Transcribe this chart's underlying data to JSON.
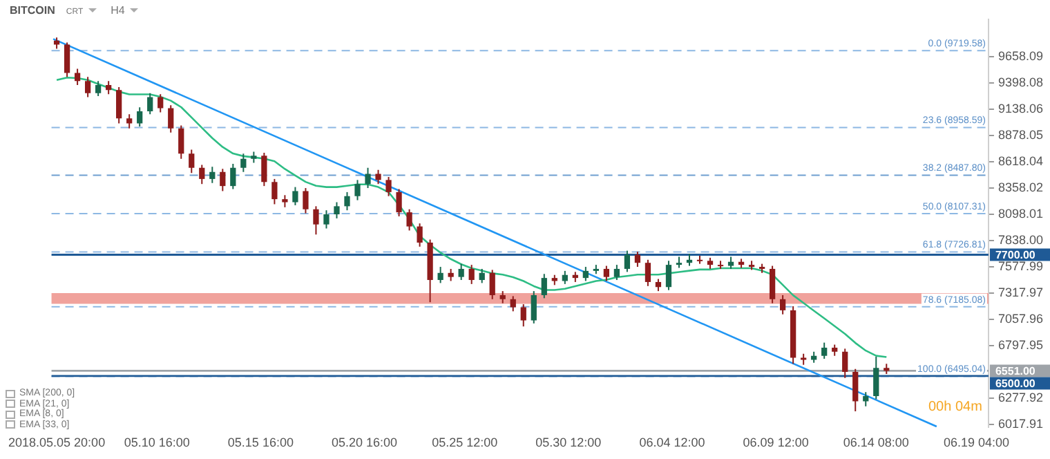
{
  "chart_data": {
    "type": "candlestick",
    "title": "BITCOIN",
    "annotations": [
      "CRT",
      "H4",
      "SMA [200, 0]",
      "EMA [21, 0]",
      "EMA [8, 0]",
      "EMA [33, 0]",
      "00h 04m"
    ],
    "x": [
      "2018-05-05T20:00",
      "2018-05-06T08:00",
      "2018-05-06T20:00",
      "2018-05-07T08:00",
      "2018-05-07T20:00",
      "2018-05-08T08:00",
      "2018-05-08T20:00",
      "2018-05-09T08:00",
      "2018-05-09T20:00",
      "2018-05-10T08:00",
      "2018-05-10T20:00",
      "2018-05-11T08:00",
      "2018-05-11T20:00",
      "2018-05-12T08:00",
      "2018-05-12T20:00",
      "2018-05-13T08:00",
      "2018-05-13T20:00",
      "2018-05-14T08:00",
      "2018-05-14T20:00",
      "2018-05-15T08:00",
      "2018-05-15T20:00",
      "2018-05-16T08:00",
      "2018-05-16T20:00",
      "2018-05-17T08:00",
      "2018-05-17T20:00",
      "2018-05-18T08:00",
      "2018-05-18T20:00",
      "2018-05-19T08:00",
      "2018-05-19T20:00",
      "2018-05-20T08:00",
      "2018-05-20T20:00",
      "2018-05-21T08:00",
      "2018-05-21T20:00",
      "2018-05-22T08:00",
      "2018-05-22T20:00",
      "2018-05-23T08:00",
      "2018-05-23T20:00",
      "2018-05-24T08:00",
      "2018-05-24T20:00",
      "2018-05-25T08:00",
      "2018-05-25T20:00",
      "2018-05-26T08:00",
      "2018-05-26T20:00",
      "2018-05-27T08:00",
      "2018-05-27T20:00",
      "2018-05-28T08:00",
      "2018-05-28T20:00",
      "2018-05-29T08:00",
      "2018-05-29T20:00",
      "2018-05-30T08:00",
      "2018-05-30T20:00",
      "2018-05-31T08:00",
      "2018-05-31T20:00",
      "2018-06-01T08:00",
      "2018-06-01T20:00",
      "2018-06-02T08:00",
      "2018-06-02T20:00",
      "2018-06-03T08:00",
      "2018-06-03T20:00",
      "2018-06-04T08:00",
      "2018-06-04T20:00",
      "2018-06-05T08:00",
      "2018-06-05T20:00",
      "2018-06-06T08:00",
      "2018-06-06T20:00",
      "2018-06-07T08:00",
      "2018-06-07T20:00",
      "2018-06-08T08:00",
      "2018-06-08T20:00",
      "2018-06-09T08:00",
      "2018-06-09T20:00",
      "2018-06-10T08:00",
      "2018-06-10T20:00",
      "2018-06-11T08:00",
      "2018-06-11T20:00",
      "2018-06-12T08:00",
      "2018-06-12T20:00",
      "2018-06-13T08:00",
      "2018-06-13T20:00",
      "2018-06-14T08:00",
      "2018-06-14T20:00"
    ],
    "ohlc": [
      [
        9820,
        9850,
        9740,
        9780
      ],
      [
        9780,
        9800,
        9460,
        9500
      ],
      [
        9500,
        9540,
        9380,
        9420
      ],
      [
        9420,
        9460,
        9260,
        9300
      ],
      [
        9300,
        9420,
        9270,
        9380
      ],
      [
        9380,
        9420,
        9290,
        9330
      ],
      [
        9330,
        9360,
        9000,
        9050
      ],
      [
        9050,
        9090,
        8950,
        9000
      ],
      [
        9000,
        9160,
        8970,
        9120
      ],
      [
        9120,
        9300,
        9090,
        9260
      ],
      [
        9260,
        9290,
        9110,
        9150
      ],
      [
        9150,
        9180,
        8910,
        8950
      ],
      [
        8950,
        8980,
        8650,
        8700
      ],
      [
        8700,
        8740,
        8510,
        8560
      ],
      [
        8560,
        8590,
        8400,
        8450
      ],
      [
        8450,
        8570,
        8410,
        8520
      ],
      [
        8520,
        8550,
        8330,
        8380
      ],
      [
        8380,
        8600,
        8350,
        8560
      ],
      [
        8560,
        8700,
        8520,
        8650
      ],
      [
        8650,
        8720,
        8610,
        8680
      ],
      [
        8680,
        8710,
        8380,
        8420
      ],
      [
        8420,
        8450,
        8200,
        8250
      ],
      [
        8250,
        8290,
        8170,
        8220
      ],
      [
        8220,
        8370,
        8190,
        8330
      ],
      [
        8330,
        8360,
        8110,
        8150
      ],
      [
        8150,
        8180,
        7900,
        8000
      ],
      [
        8000,
        8140,
        7960,
        8100
      ],
      [
        8100,
        8220,
        8060,
        8180
      ],
      [
        8180,
        8320,
        8140,
        8280
      ],
      [
        8280,
        8440,
        8240,
        8400
      ],
      [
        8400,
        8560,
        8360,
        8500
      ],
      [
        8500,
        8540,
        8400,
        8440
      ],
      [
        8440,
        8470,
        8280,
        8320
      ],
      [
        8320,
        8350,
        8080,
        8120
      ],
      [
        8120,
        8150,
        7940,
        7980
      ],
      [
        7980,
        8010,
        7780,
        7820
      ],
      [
        7820,
        7850,
        7230,
        7450
      ],
      [
        7450,
        7580,
        7420,
        7520
      ],
      [
        7520,
        7560,
        7440,
        7480
      ],
      [
        7480,
        7610,
        7450,
        7560
      ],
      [
        7560,
        7600,
        7410,
        7450
      ],
      [
        7450,
        7560,
        7420,
        7520
      ],
      [
        7520,
        7550,
        7260,
        7300
      ],
      [
        7300,
        7340,
        7220,
        7260
      ],
      [
        7260,
        7290,
        7140,
        7180
      ],
      [
        7180,
        7210,
        6990,
        7050
      ],
      [
        7050,
        7340,
        7020,
        7300
      ],
      [
        7300,
        7510,
        7270,
        7470
      ],
      [
        7470,
        7500,
        7400,
        7440
      ],
      [
        7440,
        7540,
        7410,
        7500
      ],
      [
        7500,
        7530,
        7430,
        7470
      ],
      [
        7470,
        7580,
        7440,
        7540
      ],
      [
        7540,
        7600,
        7510,
        7560
      ],
      [
        7560,
        7590,
        7440,
        7480
      ],
      [
        7480,
        7600,
        7450,
        7560
      ],
      [
        7560,
        7740,
        7530,
        7700
      ],
      [
        7700,
        7730,
        7580,
        7620
      ],
      [
        7620,
        7650,
        7390,
        7430
      ],
      [
        7430,
        7460,
        7340,
        7380
      ],
      [
        7380,
        7640,
        7350,
        7600
      ],
      [
        7600,
        7680,
        7570,
        7620
      ],
      [
        7620,
        7710,
        7590,
        7650
      ],
      [
        7650,
        7690,
        7610,
        7640
      ],
      [
        7640,
        7670,
        7560,
        7600
      ],
      [
        7600,
        7640,
        7560,
        7590
      ],
      [
        7590,
        7680,
        7560,
        7630
      ],
      [
        7630,
        7660,
        7570,
        7600
      ],
      [
        7600,
        7640,
        7550,
        7580
      ],
      [
        7580,
        7610,
        7520,
        7560
      ],
      [
        7560,
        7590,
        7220,
        7260
      ],
      [
        7260,
        7300,
        7110,
        7150
      ],
      [
        7150,
        7190,
        6620,
        6680
      ],
      [
        6680,
        6720,
        6610,
        6660
      ],
      [
        6660,
        6740,
        6630,
        6700
      ],
      [
        6700,
        6830,
        6670,
        6780
      ],
      [
        6780,
        6810,
        6700,
        6740
      ],
      [
        6740,
        6770,
        6480,
        6540
      ],
      [
        6540,
        6570,
        6150,
        6250
      ],
      [
        6250,
        6340,
        6200,
        6300
      ],
      [
        6300,
        6690,
        6270,
        6580
      ],
      [
        6580,
        6620,
        6520,
        6551
      ]
    ],
    "series": [
      {
        "type": "line",
        "color": "#2ebd85",
        "values": [
          9429,
          9454,
          9448,
          9429,
          9390,
          9352,
          9314,
          9288,
          9288,
          9288,
          9263,
          9225,
          9161,
          9059,
          8957,
          8855,
          8766,
          8702,
          8676,
          8664,
          8651,
          8625,
          8549,
          8485,
          8421,
          8383,
          8370,
          8370,
          8383,
          8396,
          8396,
          8370,
          8319,
          8192,
          8052,
          7886,
          7797,
          7721,
          7657,
          7606,
          7567,
          7542,
          7516,
          7503,
          7478,
          7440,
          7389,
          7351,
          7351,
          7363,
          7389,
          7414,
          7440,
          7452,
          7478,
          7490,
          7503,
          7503,
          7503,
          7516,
          7529,
          7542,
          7554,
          7554,
          7567,
          7567,
          7567,
          7567,
          7542,
          7503,
          7401,
          7299,
          7223,
          7146,
          7070,
          6993,
          6917,
          6827,
          6751,
          6700,
          6687
        ]
      },
      {
        "type": "line",
        "color": "#2196f3",
        "x": [
          "2018-05-05T16:00",
          "2018-06-17T06:00"
        ],
        "values": [
          9836,
          6000
        ]
      }
    ],
    "marker": "none",
    "xlim": [
      "2018-05-05T14:00",
      "2018-06-19T18:00"
    ],
    "xticks": [
      {
        "value": "2018-05-05T20:00",
        "label": "2018.05.05 20:00"
      },
      {
        "value": "2018-05-10T16:00",
        "label": "05.10 16:00"
      },
      {
        "value": "2018-05-15T16:00",
        "label": "05.15 16:00"
      },
      {
        "value": "2018-05-20T16:00",
        "label": "05.20 16:00"
      },
      {
        "value": "2018-05-25T12:00",
        "label": "05.25 12:00"
      },
      {
        "value": "2018-05-30T12:00",
        "label": "05.30 12:00"
      },
      {
        "value": "2018-06-04T12:00",
        "label": "06.04 12:00"
      },
      {
        "value": "2018-06-09T12:00",
        "label": "06.09 12:00"
      },
      {
        "value": "2018-06-14T08:00",
        "label": "06.14 08:00"
      },
      {
        "value": "2018-06-19T04:00",
        "label": "06.19 04:00"
      }
    ],
    "ylim": [
      5990,
      10030
    ],
    "yticks": [
      6017.91,
      6277.92,
      6797.95,
      7057.96,
      7317.97,
      7577.99,
      {
        "value": 7838,
        "label": "7838.00"
      },
      8098.01,
      8358.02,
      8618.04,
      8878.05,
      9138.06,
      9398.08,
      9658.09
    ],
    "bands": [
      {
        "axis": "y",
        "from": 7215,
        "to": 7320,
        "color": "#f0a29c"
      }
    ],
    "ref_lines": [
      {
        "axis": "y",
        "value": 9719.58,
        "label": "0.0 (9719.58)",
        "color": "#8db8e3",
        "line_style": "dashed"
      },
      {
        "axis": "y",
        "value": 8958.59,
        "label": "23.6 (8958.59)",
        "color": "#8db8e3",
        "line_style": "dashed"
      },
      {
        "axis": "y",
        "value": 8487.8,
        "label": "38.2 (8487.80)",
        "color": "#6f9fd0",
        "line_style": "dashed"
      },
      {
        "axis": "y",
        "value": 8107.31,
        "label": "50.0 (8107.31)",
        "color": "#8db8e3",
        "line_style": "dashed"
      },
      {
        "axis": "y",
        "value": 7726.81,
        "label": "61.8 (7726.81)",
        "color": "#8db8e3",
        "line_style": "dashed"
      },
      {
        "axis": "y",
        "value": 7185.08,
        "label": "78.6 (7185.08)",
        "color": "#8db8e3",
        "line_style": "dashed"
      },
      {
        "axis": "y",
        "value": 6495.04,
        "label": "100.0 (6495.04)",
        "color": "#8db8e3",
        "line_style": "dashed"
      },
      {
        "axis": "y",
        "value": 7700,
        "label": "7700.00",
        "color": "#1f5a96",
        "line_style": "solid"
      },
      {
        "axis": "y",
        "value": 6551,
        "label": "6551.00",
        "color": "#9ea3a8",
        "line_style": "solid"
      },
      {
        "axis": "y",
        "value": 6500,
        "label": "6500.00",
        "color": "#1f5a96",
        "line_style": "solid"
      }
    ]
  }
}
